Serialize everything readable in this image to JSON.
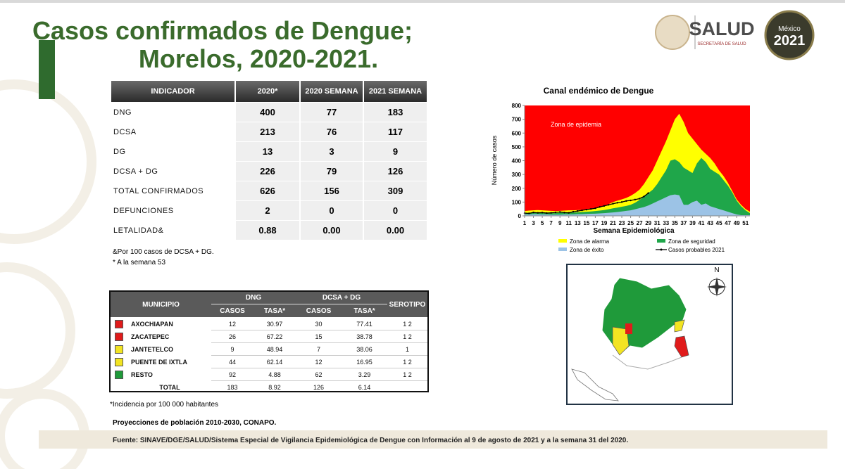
{
  "header": {
    "title_line1": "Casos confirmados de Dengue;",
    "title_line2": "Morelos, 2020-2021.",
    "logo_text": "SALUD",
    "logo_subtext": "SECRETARÍA DE SALUD",
    "badge_top": "México",
    "badge_year": "2021"
  },
  "table1": {
    "header": [
      "INDICADOR",
      "2020*",
      "2020 SEMANA",
      "2021 SEMANA"
    ],
    "rows": [
      [
        "DNG",
        "400",
        "77",
        "183"
      ],
      [
        "DCSA",
        "213",
        "76",
        "117"
      ],
      [
        "DG",
        "13",
        "3",
        "9"
      ],
      [
        "DCSA + DG",
        "226",
        "79",
        "126"
      ],
      [
        "TOTAL CONFIRMADOS",
        "626",
        "156",
        "309"
      ],
      [
        "DEFUNCIONES",
        "2",
        "0",
        "0"
      ],
      [
        "LETALIDAD&",
        "0.88",
        "0.00",
        "0.00"
      ]
    ],
    "notes": [
      "&Por 100 casos de DCSA + DG.",
      "* A la semana 53"
    ]
  },
  "table2": {
    "header_top": [
      "MUNICIPIO",
      "DNG",
      "DCSA + DG",
      "SEROTIPO"
    ],
    "header_sub": [
      "CASOS",
      "TASA*",
      "CASOS",
      "TASA*"
    ],
    "rows": [
      {
        "color": "#e01b1b",
        "cells": [
          "AXOCHIAPAN",
          "12",
          "30.97",
          "30",
          "77.41",
          "1   2"
        ]
      },
      {
        "color": "#e01b1b",
        "cells": [
          "ZACATEPEC",
          "26",
          "67.22",
          "15",
          "38.78",
          "1   2"
        ]
      },
      {
        "color": "#f2e422",
        "cells": [
          "JANTETELCO",
          "9",
          "48.94",
          "7",
          "38.06",
          "1"
        ]
      },
      {
        "color": "#f2e422",
        "cells": [
          "PUENTE DE IXTLA",
          "44",
          "62.14",
          "12",
          "16.95",
          "1   2"
        ]
      },
      {
        "color": "#1f9a3a",
        "cells": [
          "RESTO",
          "92",
          "4.88",
          "62",
          "3.29",
          "1   2"
        ]
      }
    ],
    "total": [
      "TOTAL",
      "183",
      "8.92",
      "126",
      "6.14"
    ],
    "notes": [
      "*Incidencia por 100 000 habitantes",
      "Proyecciones de población 2010-2030,  CONAPO."
    ]
  },
  "footer": {
    "source": "Fuente: SINAVE/DGE/SALUD/Sistema Especial de Vigilancia Epidemiológica de Dengue con Información al 9 de agosto de 2021 y a la semana 31 del 2020."
  },
  "map": {
    "north_label": "N"
  },
  "chart_data": {
    "type": "area",
    "title": "Canal endémico de Dengue",
    "xlabel": "Semana Epidemiológica",
    "ylabel": "Número de casos",
    "annotation": "Zona de epidemia",
    "background_color": "#ff0000",
    "x": [
      1,
      2,
      3,
      4,
      5,
      6,
      7,
      8,
      9,
      10,
      11,
      12,
      13,
      14,
      15,
      16,
      17,
      18,
      19,
      20,
      21,
      22,
      23,
      24,
      25,
      26,
      27,
      28,
      29,
      30,
      31,
      32,
      33,
      34,
      35,
      36,
      37,
      38,
      39,
      40,
      41,
      42,
      43,
      44,
      45,
      46,
      47,
      48,
      49,
      50,
      51,
      52
    ],
    "xlim": [
      1,
      52
    ],
    "xticks": [
      1,
      3,
      5,
      7,
      9,
      11,
      13,
      15,
      17,
      19,
      21,
      23,
      25,
      27,
      29,
      31,
      33,
      35,
      37,
      39,
      41,
      43,
      45,
      47,
      49,
      51
    ],
    "ylim": [
      0,
      800
    ],
    "yticks": [
      0,
      100,
      200,
      300,
      400,
      500,
      600,
      700,
      800
    ],
    "series": [
      {
        "name": "Zona de alarma",
        "color": "#ffff00",
        "values": [
          35,
          38,
          40,
          42,
          40,
          38,
          36,
          35,
          36,
          38,
          40,
          40,
          42,
          42,
          44,
          48,
          55,
          60,
          70,
          85,
          100,
          110,
          120,
          130,
          145,
          165,
          190,
          230,
          280,
          330,
          400,
          470,
          540,
          620,
          700,
          740,
          680,
          600,
          560,
          520,
          480,
          450,
          420,
          380,
          330,
          290,
          240,
          180,
          120,
          80,
          50,
          30
        ]
      },
      {
        "name": "Zona de seguridad",
        "color": "#1fa64a",
        "values": [
          20,
          22,
          24,
          25,
          24,
          22,
          20,
          20,
          22,
          24,
          25,
          25,
          26,
          28,
          30,
          32,
          35,
          38,
          42,
          48,
          55,
          60,
          66,
          72,
          80,
          95,
          115,
          140,
          165,
          190,
          230,
          280,
          330,
          400,
          410,
          390,
          350,
          330,
          310,
          380,
          420,
          390,
          340,
          320,
          300,
          260,
          220,
          170,
          110,
          70,
          40,
          20
        ]
      },
      {
        "name": "Zona de éxito",
        "color": "#9cc3e6",
        "values": [
          10,
          10,
          12,
          12,
          10,
          10,
          8,
          8,
          8,
          10,
          10,
          10,
          12,
          12,
          14,
          15,
          16,
          18,
          20,
          22,
          25,
          28,
          32,
          36,
          40,
          48,
          56,
          64,
          75,
          90,
          105,
          120,
          135,
          150,
          155,
          150,
          80,
          80,
          100,
          110,
          80,
          90,
          70,
          60,
          50,
          40,
          30,
          20,
          10,
          5,
          5,
          5
        ]
      },
      {
        "name": "Casos probables 2021",
        "color": "#000000",
        "type": "line",
        "values": [
          20,
          18,
          25,
          22,
          24,
          20,
          22,
          25,
          28,
          24,
          22,
          30,
          35,
          40,
          45,
          50,
          55,
          65,
          72,
          80,
          88,
          95,
          100,
          108,
          112,
          118,
          125,
          140,
          165,
          null,
          null,
          null,
          null,
          null,
          null,
          null,
          null,
          null,
          null,
          null,
          null,
          null,
          null,
          null,
          null,
          null,
          null,
          null,
          null,
          null,
          null,
          null
        ]
      }
    ]
  }
}
